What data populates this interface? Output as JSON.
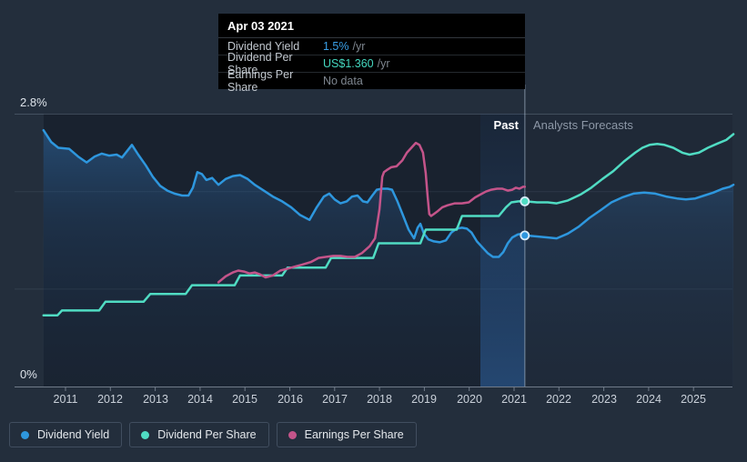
{
  "tooltip": {
    "title": "Apr 03 2021",
    "rows": [
      {
        "label": "Dividend Yield",
        "value": "1.5%",
        "suffix": "/yr"
      },
      {
        "label": "Dividend Per Share",
        "value": "US$1.360",
        "suffix": "/yr"
      },
      {
        "label": "Earnings Per Share",
        "value": "No data",
        "suffix": ""
      }
    ]
  },
  "zones": {
    "past_label": "Past",
    "forecast_label": "Analysts Forecasts"
  },
  "legend": {
    "items": [
      {
        "label": "Dividend Yield",
        "color": "#2e97de"
      },
      {
        "label": "Dividend Per Share",
        "color": "#50dcc3"
      },
      {
        "label": "Earnings Per Share",
        "color": "#c4548a"
      }
    ]
  },
  "chart_data": {
    "type": "line",
    "title": "",
    "xlabel": "",
    "ylabel": "",
    "y_axis": {
      "min": 0,
      "max": 2.8,
      "top_label": "2.8%",
      "bottom_label": "0%",
      "unit": "%",
      "gridlines_at": [
        1.0,
        2.0
      ]
    },
    "x_ticks": [
      2011,
      2012,
      2013,
      2014,
      2015,
      2016,
      2017,
      2018,
      2019,
      2020,
      2021,
      2022,
      2023,
      2024,
      2025
    ],
    "x_range": [
      2010.5,
      2025.95
    ],
    "divider_x": 2021.24,
    "past_band": [
      2020.25,
      2021.24
    ],
    "legend_position": "bottom-left",
    "series": [
      {
        "name": "Dividend Yield",
        "color": "#2e97de",
        "area": true,
        "axis_unit": "percent",
        "points": [
          [
            2010.51,
            2.63
          ],
          [
            2010.68,
            2.51
          ],
          [
            2010.84,
            2.45
          ],
          [
            2011.08,
            2.44
          ],
          [
            2011.28,
            2.36
          ],
          [
            2011.47,
            2.3
          ],
          [
            2011.65,
            2.36
          ],
          [
            2011.81,
            2.39
          ],
          [
            2011.97,
            2.37
          ],
          [
            2012.14,
            2.38
          ],
          [
            2012.26,
            2.35
          ],
          [
            2012.38,
            2.42
          ],
          [
            2012.48,
            2.48
          ],
          [
            2012.62,
            2.38
          ],
          [
            2012.79,
            2.27
          ],
          [
            2012.95,
            2.15
          ],
          [
            2013.11,
            2.06
          ],
          [
            2013.27,
            2.01
          ],
          [
            2013.43,
            1.98
          ],
          [
            2013.6,
            1.96
          ],
          [
            2013.74,
            1.96
          ],
          [
            2013.84,
            2.04
          ],
          [
            2013.94,
            2.2
          ],
          [
            2014.04,
            2.18
          ],
          [
            2014.14,
            2.12
          ],
          [
            2014.27,
            2.14
          ],
          [
            2014.41,
            2.07
          ],
          [
            2014.57,
            2.13
          ],
          [
            2014.73,
            2.16
          ],
          [
            2014.89,
            2.17
          ],
          [
            2015.06,
            2.13
          ],
          [
            2015.22,
            2.07
          ],
          [
            2015.42,
            2.01
          ],
          [
            2015.62,
            1.95
          ],
          [
            2015.83,
            1.9
          ],
          [
            2016.03,
            1.84
          ],
          [
            2016.23,
            1.76
          ],
          [
            2016.44,
            1.71
          ],
          [
            2016.6,
            1.84
          ],
          [
            2016.76,
            1.95
          ],
          [
            2016.88,
            1.98
          ],
          [
            2017.0,
            1.92
          ],
          [
            2017.13,
            1.88
          ],
          [
            2017.27,
            1.9
          ],
          [
            2017.39,
            1.95
          ],
          [
            2017.51,
            1.96
          ],
          [
            2017.63,
            1.9
          ],
          [
            2017.73,
            1.89
          ],
          [
            2017.84,
            1.96
          ],
          [
            2017.94,
            2.02
          ],
          [
            2018.06,
            2.03
          ],
          [
            2018.18,
            2.03
          ],
          [
            2018.28,
            2.02
          ],
          [
            2018.4,
            1.9
          ],
          [
            2018.53,
            1.75
          ],
          [
            2018.65,
            1.61
          ],
          [
            2018.77,
            1.52
          ],
          [
            2018.85,
            1.63
          ],
          [
            2018.91,
            1.67
          ],
          [
            2018.99,
            1.57
          ],
          [
            2019.09,
            1.51
          ],
          [
            2019.21,
            1.49
          ],
          [
            2019.34,
            1.48
          ],
          [
            2019.48,
            1.5
          ],
          [
            2019.6,
            1.58
          ],
          [
            2019.72,
            1.62
          ],
          [
            2019.84,
            1.63
          ],
          [
            2019.95,
            1.62
          ],
          [
            2020.05,
            1.58
          ],
          [
            2020.17,
            1.49
          ],
          [
            2020.29,
            1.43
          ],
          [
            2020.41,
            1.37
          ],
          [
            2020.53,
            1.33
          ],
          [
            2020.66,
            1.33
          ],
          [
            2020.76,
            1.38
          ],
          [
            2020.86,
            1.47
          ],
          [
            2020.96,
            1.53
          ],
          [
            2021.08,
            1.56
          ],
          [
            2021.18,
            1.57
          ],
          [
            2021.26,
            1.55
          ],
          [
            2021.51,
            1.54
          ],
          [
            2021.75,
            1.53
          ],
          [
            2021.95,
            1.52
          ],
          [
            2022.2,
            1.57
          ],
          [
            2022.44,
            1.64
          ],
          [
            2022.68,
            1.73
          ],
          [
            2022.93,
            1.81
          ],
          [
            2023.17,
            1.89
          ],
          [
            2023.41,
            1.94
          ],
          [
            2023.66,
            1.98
          ],
          [
            2023.9,
            1.99
          ],
          [
            2024.15,
            1.98
          ],
          [
            2024.39,
            1.95
          ],
          [
            2024.63,
            1.93
          ],
          [
            2024.83,
            1.92
          ],
          [
            2025.04,
            1.93
          ],
          [
            2025.24,
            1.96
          ],
          [
            2025.44,
            1.99
          ],
          [
            2025.65,
            2.03
          ],
          [
            2025.81,
            2.05
          ],
          [
            2025.89,
            2.07
          ]
        ]
      },
      {
        "name": "Dividend Per Share",
        "color": "#50dcc3",
        "area": false,
        "axis_unit": "percent-equivalent",
        "tooltip_actual": "US$1.360 /yr at axis value 1.90",
        "points": [
          [
            2010.51,
            0.73
          ],
          [
            2010.82,
            0.73
          ],
          [
            2010.92,
            0.78
          ],
          [
            2011.75,
            0.78
          ],
          [
            2011.89,
            0.87
          ],
          [
            2012.74,
            0.87
          ],
          [
            2012.89,
            0.95
          ],
          [
            2013.68,
            0.95
          ],
          [
            2013.82,
            1.04
          ],
          [
            2014.77,
            1.04
          ],
          [
            2014.89,
            1.14
          ],
          [
            2015.83,
            1.14
          ],
          [
            2015.95,
            1.22
          ],
          [
            2016.8,
            1.22
          ],
          [
            2016.92,
            1.32
          ],
          [
            2017.86,
            1.32
          ],
          [
            2017.98,
            1.47
          ],
          [
            2018.91,
            1.47
          ],
          [
            2019.03,
            1.61
          ],
          [
            2019.72,
            1.61
          ],
          [
            2019.84,
            1.75
          ],
          [
            2020.66,
            1.75
          ],
          [
            2020.82,
            1.84
          ],
          [
            2020.94,
            1.89
          ],
          [
            2021.1,
            1.9
          ],
          [
            2021.26,
            1.9
          ],
          [
            2021.51,
            1.89
          ],
          [
            2021.75,
            1.89
          ],
          [
            2021.95,
            1.88
          ],
          [
            2022.2,
            1.91
          ],
          [
            2022.48,
            1.97
          ],
          [
            2022.72,
            2.04
          ],
          [
            2022.97,
            2.13
          ],
          [
            2023.21,
            2.21
          ],
          [
            2023.45,
            2.31
          ],
          [
            2023.7,
            2.4
          ],
          [
            2023.86,
            2.45
          ],
          [
            2024.02,
            2.48
          ],
          [
            2024.19,
            2.49
          ],
          [
            2024.35,
            2.48
          ],
          [
            2024.55,
            2.45
          ],
          [
            2024.75,
            2.4
          ],
          [
            2024.91,
            2.38
          ],
          [
            2025.12,
            2.4
          ],
          [
            2025.32,
            2.45
          ],
          [
            2025.52,
            2.49
          ],
          [
            2025.73,
            2.53
          ],
          [
            2025.89,
            2.59
          ]
        ]
      },
      {
        "name": "Earnings Per Share",
        "color": "#c4548a",
        "area": false,
        "axis_unit": "percent-equivalent",
        "points": [
          [
            2014.41,
            1.07
          ],
          [
            2014.57,
            1.13
          ],
          [
            2014.73,
            1.17
          ],
          [
            2014.85,
            1.19
          ],
          [
            2014.98,
            1.18
          ],
          [
            2015.1,
            1.16
          ],
          [
            2015.22,
            1.17
          ],
          [
            2015.34,
            1.15
          ],
          [
            2015.46,
            1.12
          ],
          [
            2015.62,
            1.14
          ],
          [
            2015.79,
            1.19
          ],
          [
            2015.95,
            1.21
          ],
          [
            2016.11,
            1.23
          ],
          [
            2016.27,
            1.25
          ],
          [
            2016.48,
            1.28
          ],
          [
            2016.64,
            1.32
          ],
          [
            2016.8,
            1.33
          ],
          [
            2016.97,
            1.34
          ],
          [
            2017.13,
            1.34
          ],
          [
            2017.29,
            1.33
          ],
          [
            2017.45,
            1.33
          ],
          [
            2017.61,
            1.37
          ],
          [
            2017.78,
            1.44
          ],
          [
            2017.9,
            1.52
          ],
          [
            2018.0,
            1.82
          ],
          [
            2018.06,
            2.15
          ],
          [
            2018.1,
            2.2
          ],
          [
            2018.16,
            2.22
          ],
          [
            2018.26,
            2.25
          ],
          [
            2018.38,
            2.26
          ],
          [
            2018.51,
            2.32
          ],
          [
            2018.61,
            2.4
          ],
          [
            2018.71,
            2.45
          ],
          [
            2018.81,
            2.5
          ],
          [
            2018.89,
            2.48
          ],
          [
            2018.97,
            2.4
          ],
          [
            2019.03,
            2.19
          ],
          [
            2019.07,
            1.96
          ],
          [
            2019.11,
            1.77
          ],
          [
            2019.15,
            1.75
          ],
          [
            2019.21,
            1.77
          ],
          [
            2019.3,
            1.8
          ],
          [
            2019.4,
            1.84
          ],
          [
            2019.52,
            1.86
          ],
          [
            2019.68,
            1.88
          ],
          [
            2019.84,
            1.88
          ],
          [
            2019.99,
            1.89
          ],
          [
            2020.13,
            1.94
          ],
          [
            2020.25,
            1.97
          ],
          [
            2020.37,
            2.0
          ],
          [
            2020.49,
            2.02
          ],
          [
            2020.62,
            2.03
          ],
          [
            2020.74,
            2.03
          ],
          [
            2020.86,
            2.01
          ],
          [
            2020.96,
            2.02
          ],
          [
            2021.04,
            2.04
          ],
          [
            2021.12,
            2.03
          ],
          [
            2021.2,
            2.05
          ],
          [
            2021.24,
            2.05
          ]
        ]
      }
    ],
    "markers": [
      {
        "series": 0,
        "x": 2021.24,
        "value": 1.55
      },
      {
        "series": 1,
        "x": 2021.24,
        "value": 1.9
      }
    ]
  }
}
